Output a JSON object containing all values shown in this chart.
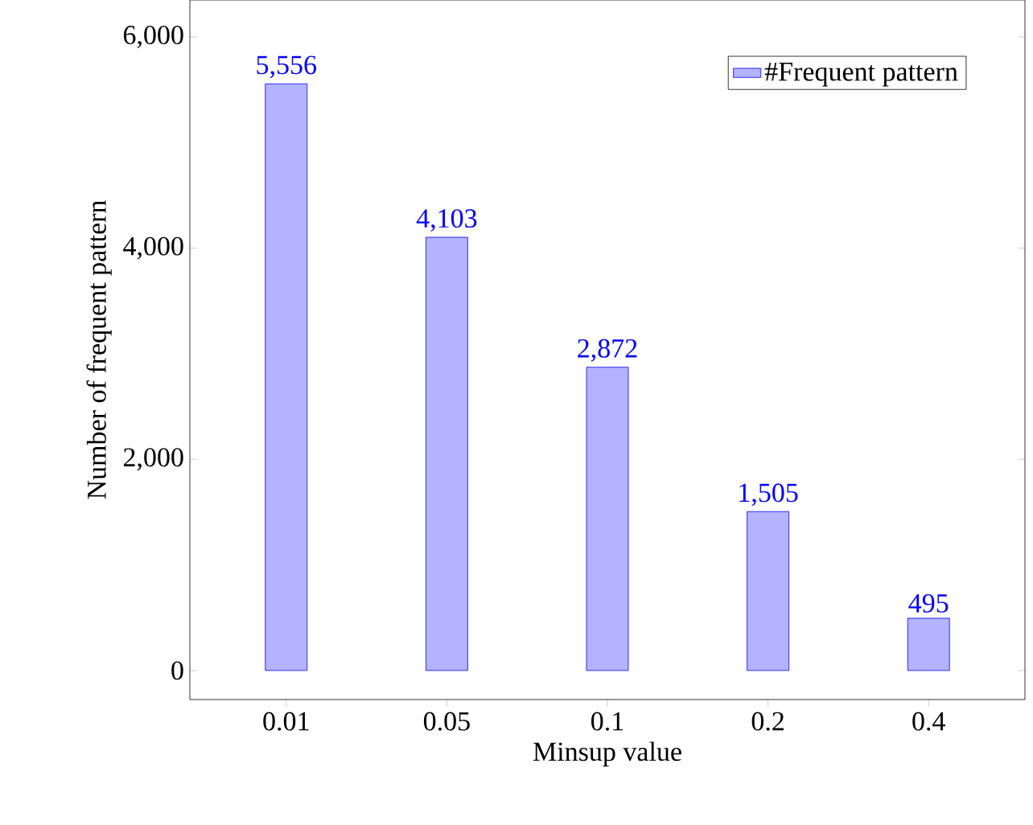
{
  "chart_data": {
    "type": "bar",
    "xlabel": "Minsup value",
    "ylabel": "Number of frequent pattern",
    "categories": [
      "0.01",
      "0.05",
      "0.1",
      "0.2",
      "0.4"
    ],
    "series": [
      {
        "name": "#Frequent pattern",
        "color": "#b3b3ff",
        "values": [
          5556,
          4103,
          2872,
          1505,
          495
        ],
        "value_labels": [
          "5,556",
          "4,103",
          "2,872",
          "1,505",
          "495"
        ]
      }
    ],
    "ylim": [
      -275,
      6350
    ],
    "yticks": [
      {
        "value": 0,
        "label": "0"
      },
      {
        "value": 2000,
        "label": "2,000"
      },
      {
        "value": 4000,
        "label": "4,000"
      },
      {
        "value": 6000,
        "label": "6,000"
      }
    ],
    "legend": "top right",
    "grid": false
  }
}
